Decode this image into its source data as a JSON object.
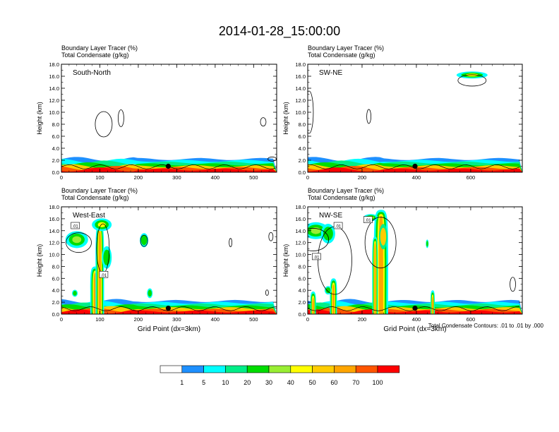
{
  "title": "2014-01-28_15:00:00",
  "footnote": "Total Condensate Contours: .01 to .01 by .000",
  "colorbar": {
    "labels": [
      "1",
      "5",
      "10",
      "20",
      "30",
      "40",
      "50",
      "60",
      "70",
      "100"
    ],
    "colors": [
      "#ffffff",
      "#1e90ff",
      "#00ffff",
      "#00ee88",
      "#00dd00",
      "#99ee33",
      "#ffff00",
      "#ffcc00",
      "#ffa500",
      "#ff5500",
      "#ff0000"
    ]
  },
  "chart_data": [
    {
      "type": "heatmap",
      "panel": "south-north",
      "subtitle_line1": "Boundary Layer Tracer   (%)",
      "subtitle_line2": "Total Condensate   (g/kg)",
      "label": "South-North",
      "xlabel": "",
      "ylabel": "Height (km)",
      "xlim": [
        0,
        560
      ],
      "ylim": [
        0,
        18
      ],
      "xticks": [
        0,
        100,
        200,
        300,
        400,
        500
      ],
      "xtick_labels": [
        "0",
        "100",
        "200",
        "300",
        "400",
        "500"
      ],
      "yticks": [
        0,
        2,
        4,
        6,
        8,
        10,
        12,
        14,
        16,
        18
      ],
      "ytick_labels": [
        "0.0",
        "2.0",
        "4.0",
        "6.0",
        "8.0",
        "10.0",
        "12.0",
        "14.0",
        "16.0",
        "18.0"
      ],
      "marker": {
        "x": 278,
        "y": 1.0
      },
      "contour_labels": []
    },
    {
      "type": "heatmap",
      "panel": "sw-ne",
      "subtitle_line1": "Boundary Layer Tracer   (%)",
      "subtitle_line2": "Total Condensate   (g/kg)",
      "label": "SW-NE",
      "xlabel": "",
      "ylabel": "Height (km)",
      "xlim": [
        0,
        790
      ],
      "ylim": [
        0,
        18
      ],
      "xticks": [
        0,
        200,
        400,
        600
      ],
      "xtick_labels": [
        "0",
        "200",
        "400",
        "600"
      ],
      "yticks": [
        0,
        2,
        4,
        6,
        8,
        10,
        12,
        14,
        16,
        18
      ],
      "ytick_labels": [
        "0.0",
        "2.0",
        "4.0",
        "6.0",
        "8.0",
        "10.0",
        "12.0",
        "14.0",
        "16.0",
        "18.0"
      ],
      "marker": {
        "x": 395,
        "y": 1.0
      },
      "contour_labels": []
    },
    {
      "type": "heatmap",
      "panel": "west-east",
      "subtitle_line1": "Boundary Layer Tracer   (%)",
      "subtitle_line2": "Total Condensate   (g/kg)",
      "label": "West-East",
      "xlabel": "Grid Point (dx=3km)",
      "ylabel": "Height (km)",
      "xlim": [
        0,
        560
      ],
      "ylim": [
        0,
        18
      ],
      "xticks": [
        0,
        100,
        200,
        300,
        400,
        500
      ],
      "xtick_labels": [
        "0",
        "100",
        "200",
        "300",
        "400",
        "500"
      ],
      "yticks": [
        0,
        2,
        4,
        6,
        8,
        10,
        12,
        14,
        16,
        18
      ],
      "ytick_labels": [
        "0.0",
        "2.0",
        "4.0",
        "6.0",
        "8.0",
        "10.0",
        "12.0",
        "14.0",
        "16.0",
        "18.0"
      ],
      "marker": {
        "x": 278,
        "y": 1.0
      },
      "contour_labels": [
        {
          "x": 36,
          "y": 14.8,
          "text": ".01"
        },
        {
          "x": 110,
          "y": 6.6,
          "text": ".01"
        }
      ]
    },
    {
      "type": "heatmap",
      "panel": "nw-se",
      "subtitle_line1": "Boundary Layer Tracer   (%)",
      "subtitle_line2": "Total Condensate   (g/kg)",
      "label": "NW-SE",
      "xlabel": "Grid Point (dx=3km)",
      "ylabel": "Height (km)",
      "xlim": [
        0,
        790
      ],
      "ylim": [
        0,
        18
      ],
      "xticks": [
        0,
        200,
        400,
        600
      ],
      "xtick_labels": [
        "0",
        "200",
        "400",
        "600"
      ],
      "yticks": [
        0,
        2,
        4,
        6,
        8,
        10,
        12,
        14,
        16,
        18
      ],
      "ytick_labels": [
        "0.0",
        "2.0",
        "4.0",
        "6.0",
        "8.0",
        "10.0",
        "12.0",
        "14.0",
        "16.0",
        "18.0"
      ],
      "marker": {
        "x": 395,
        "y": 1.0
      },
      "contour_labels": [
        {
          "x": 112,
          "y": 14.8,
          "text": ".01"
        },
        {
          "x": 32,
          "y": 9.6,
          "text": ".01"
        },
        {
          "x": 222,
          "y": 15.8,
          "text": ".01"
        }
      ]
    }
  ]
}
